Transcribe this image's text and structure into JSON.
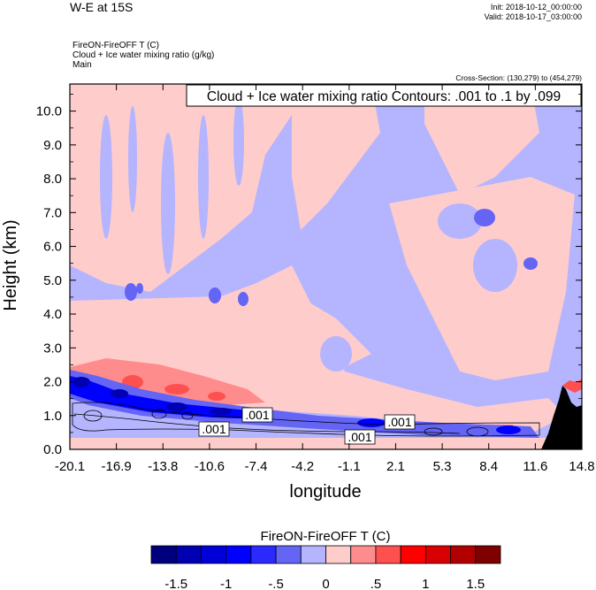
{
  "header": {
    "title": "W-E at 15S",
    "init": "Init: 2018-10-12_00:00:00",
    "valid": "Valid: 2018-10-17_03:00:00",
    "field_lines": [
      "FireON-FireOFF T   (C)",
      "Cloud + Ice water mixing ratio   (g/kg)",
      "Main"
    ],
    "cross_section": "Cross-Section: (130,279) to (454,279)"
  },
  "chart_data": {
    "type": "heatmap",
    "title": "Cloud + Ice water mixing ratio Contours: .001 to .1 by .099",
    "xlabel": "longitude",
    "ylabel": "Height (km)",
    "x_ticks": [
      "-20.1",
      "-16.9",
      "-13.8",
      "-10.6",
      "-7.4",
      "-4.2",
      "-1.1",
      "2.1",
      "5.3",
      "8.4",
      "11.6",
      "14.8"
    ],
    "y_ticks": [
      "0.0",
      "1.0",
      "2.0",
      "3.0",
      "4.0",
      "5.0",
      "6.0",
      "7.0",
      "8.0",
      "9.0",
      "10.0"
    ],
    "ylim": [
      0,
      10.8
    ],
    "contour_labels": [
      ".001",
      ".001",
      ".001",
      ".001"
    ],
    "colorbar": {
      "title": "FireON-FireOFF T  (C)",
      "tick_labels": [
        "-1.5",
        "-1",
        "-.5",
        "0",
        ".5",
        "1",
        "1.5"
      ],
      "colors": [
        "#00007f",
        "#0000b2",
        "#0000d8",
        "#0000ff",
        "#2a2aff",
        "#6464f5",
        "#b4b4ff",
        "#ffcccc",
        "#ff8c8c",
        "#ff5050",
        "#ff0000",
        "#d80000",
        "#b20000",
        "#7f0000"
      ]
    }
  }
}
